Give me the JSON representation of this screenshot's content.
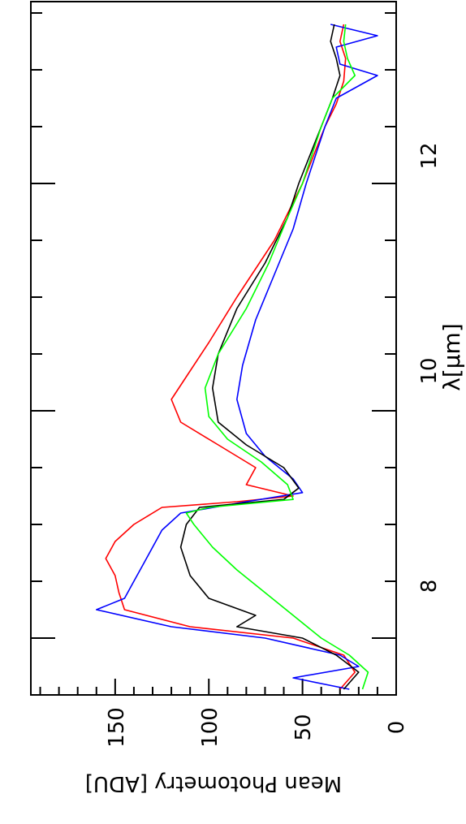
{
  "chart_data": {
    "type": "line",
    "rotated": "90deg-clockwise",
    "xlabel": "λ[μm]",
    "ylabel": "Mean Photometry [ADU]",
    "xlim": [
      7.5,
      13.6
    ],
    "ylim": [
      0,
      195
    ],
    "x_ticks_major": [
      8,
      10,
      12
    ],
    "x_ticks_labels": [
      "8",
      "10",
      "12"
    ],
    "x_minor_step": 0.5,
    "y_ticks_major": [
      0,
      50,
      100,
      150
    ],
    "y_ticks_labels": [
      "0",
      "50",
      "100",
      "150"
    ],
    "y_minor_step": 10,
    "grid": false,
    "series": [
      {
        "color": "#ff0000",
        "points": [
          [
            7.55,
            30
          ],
          [
            7.7,
            22
          ],
          [
            7.85,
            28
          ],
          [
            8.0,
            55
          ],
          [
            8.1,
            110
          ],
          [
            8.25,
            145
          ],
          [
            8.4,
            148
          ],
          [
            8.55,
            150
          ],
          [
            8.7,
            155
          ],
          [
            8.85,
            150
          ],
          [
            9.0,
            140
          ],
          [
            9.15,
            125
          ],
          [
            9.2,
            85
          ],
          [
            9.25,
            55
          ],
          [
            9.35,
            80
          ],
          [
            9.5,
            75
          ],
          [
            9.7,
            95
          ],
          [
            9.9,
            115
          ],
          [
            10.1,
            120
          ],
          [
            10.3,
            112
          ],
          [
            10.6,
            100
          ],
          [
            11.0,
            85
          ],
          [
            11.5,
            65
          ],
          [
            12.0,
            50
          ],
          [
            12.5,
            38
          ],
          [
            12.7,
            32
          ],
          [
            12.9,
            28
          ],
          [
            13.1,
            27
          ],
          [
            13.25,
            30
          ],
          [
            13.4,
            28
          ]
        ]
      },
      {
        "color": "#0000ff",
        "points": [
          [
            7.55,
            25
          ],
          [
            7.65,
            55
          ],
          [
            7.75,
            20
          ],
          [
            7.85,
            30
          ],
          [
            8.0,
            70
          ],
          [
            8.1,
            120
          ],
          [
            8.25,
            160
          ],
          [
            8.35,
            145
          ],
          [
            8.5,
            140
          ],
          [
            8.65,
            135
          ],
          [
            8.8,
            130
          ],
          [
            8.95,
            125
          ],
          [
            9.1,
            115
          ],
          [
            9.2,
            80
          ],
          [
            9.28,
            50
          ],
          [
            9.4,
            55
          ],
          [
            9.6,
            70
          ],
          [
            9.8,
            80
          ],
          [
            10.1,
            85
          ],
          [
            10.4,
            82
          ],
          [
            10.8,
            75
          ],
          [
            11.2,
            65
          ],
          [
            11.6,
            55
          ],
          [
            12.0,
            48
          ],
          [
            12.5,
            38
          ],
          [
            12.75,
            32
          ],
          [
            12.95,
            10
          ],
          [
            13.05,
            30
          ],
          [
            13.2,
            32
          ],
          [
            13.3,
            10
          ],
          [
            13.4,
            35
          ]
        ]
      },
      {
        "color": "#000000",
        "points": [
          [
            7.55,
            28
          ],
          [
            7.7,
            20
          ],
          [
            7.85,
            32
          ],
          [
            8.0,
            50
          ],
          [
            8.1,
            85
          ],
          [
            8.2,
            75
          ],
          [
            8.35,
            100
          ],
          [
            8.55,
            110
          ],
          [
            8.8,
            115
          ],
          [
            9.0,
            112
          ],
          [
            9.15,
            105
          ],
          [
            9.22,
            60
          ],
          [
            9.32,
            52
          ],
          [
            9.5,
            60
          ],
          [
            9.7,
            80
          ],
          [
            9.9,
            95
          ],
          [
            10.2,
            98
          ],
          [
            10.5,
            95
          ],
          [
            10.9,
            85
          ],
          [
            11.3,
            70
          ],
          [
            11.7,
            58
          ],
          [
            12.0,
            52
          ],
          [
            12.5,
            40
          ],
          [
            12.75,
            34
          ],
          [
            12.95,
            30
          ],
          [
            13.1,
            32
          ],
          [
            13.25,
            35
          ],
          [
            13.4,
            33
          ]
        ]
      },
      {
        "color": "#00ff00",
        "points": [
          [
            7.55,
            18
          ],
          [
            7.7,
            15
          ],
          [
            7.85,
            25
          ],
          [
            8.0,
            40
          ],
          [
            8.2,
            55
          ],
          [
            8.4,
            70
          ],
          [
            8.6,
            85
          ],
          [
            8.8,
            98
          ],
          [
            9.0,
            108
          ],
          [
            9.1,
            112
          ],
          [
            9.15,
            100
          ],
          [
            9.22,
            55
          ],
          [
            9.35,
            58
          ],
          [
            9.55,
            72
          ],
          [
            9.75,
            90
          ],
          [
            9.95,
            100
          ],
          [
            10.2,
            102
          ],
          [
            10.5,
            95
          ],
          [
            10.9,
            80
          ],
          [
            11.3,
            68
          ],
          [
            11.7,
            58
          ],
          [
            12.0,
            50
          ],
          [
            12.5,
            40
          ],
          [
            12.75,
            34
          ],
          [
            12.95,
            22
          ],
          [
            13.1,
            26
          ],
          [
            13.25,
            28
          ],
          [
            13.4,
            27
          ]
        ]
      }
    ]
  }
}
